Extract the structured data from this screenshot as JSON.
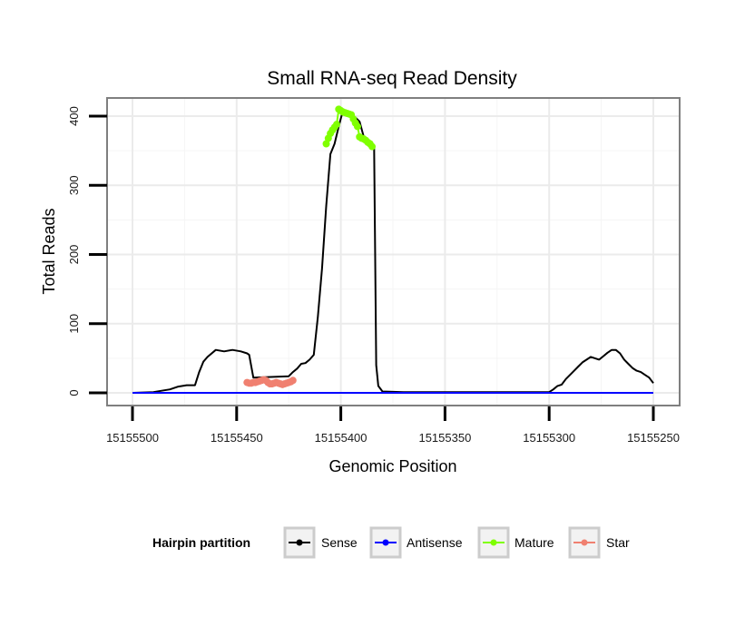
{
  "chart_data": {
    "type": "line",
    "title": "Small RNA-seq Read Density",
    "xlabel": "Genomic Position",
    "ylabel": "Total Reads",
    "xlim": [
      15155500,
      15155250
    ],
    "ylim": [
      0,
      420
    ],
    "x_reversed": true,
    "x_ticks": [
      15155500,
      15155450,
      15155400,
      15155350,
      15155300,
      15155250
    ],
    "y_ticks": [
      0,
      100,
      200,
      300,
      400
    ],
    "x_tick_labels": [
      "15155500",
      "15155450",
      "15155400",
      "15155350",
      "15155300",
      "15155250"
    ],
    "y_tick_labels": [
      "0",
      "100",
      "200",
      "300",
      "400"
    ],
    "grid": true,
    "legend": {
      "title": "Hairpin partition",
      "placement": "bottom",
      "entries": [
        {
          "name": "Sense",
          "color": "#000000"
        },
        {
          "name": "Antisense",
          "color": "#0000ff"
        },
        {
          "name": "Mature",
          "color": "#7fff00"
        },
        {
          "name": "Star",
          "color": "#f08070"
        }
      ]
    },
    "series": [
      {
        "name": "Sense",
        "color": "#000000",
        "markers": false,
        "x": [
          15155500,
          15155490,
          15155486,
          15155482,
          15155478,
          15155474,
          15155470,
          15155468,
          15155466,
          15155464,
          15155460,
          15155456,
          15155452,
          15155448,
          15155445,
          15155444,
          15155442,
          15155425,
          15155423,
          15155421,
          15155419,
          15155417,
          15155415,
          15155413,
          15155411,
          15155409,
          15155407,
          15155405,
          15155403,
          15155401,
          15155399,
          15155397,
          15155395,
          15155393,
          15155391,
          15155389,
          15155387,
          15155386,
          15155385,
          15155384,
          15155383,
          15155382,
          15155380,
          15155370,
          15155360,
          15155350,
          15155340,
          15155325,
          15155315,
          15155300,
          15155298,
          15155296,
          15155294,
          15155292,
          15155290,
          15155288,
          15155286,
          15155284,
          15155282,
          15155280,
          15155278,
          15155276,
          15155274,
          15155272,
          15155270,
          15155268,
          15155266,
          15155264,
          15155262,
          15155260,
          15155258,
          15155256,
          15155254,
          15155252,
          15155250
        ],
        "y": [
          0,
          1,
          3,
          5,
          9,
          11,
          11,
          30,
          45,
          52,
          62,
          60,
          62,
          60,
          57,
          55,
          22,
          24,
          30,
          35,
          42,
          43,
          48,
          55,
          110,
          180,
          270,
          345,
          360,
          385,
          408,
          405,
          402,
          398,
          392,
          370,
          366,
          362,
          358,
          355,
          40,
          10,
          2,
          1,
          1,
          1,
          1,
          1,
          1,
          1,
          5,
          10,
          12,
          20,
          26,
          32,
          38,
          44,
          48,
          52,
          50,
          48,
          53,
          58,
          62,
          62,
          57,
          48,
          42,
          36,
          32,
          30,
          26,
          22,
          14
        ]
      },
      {
        "name": "Antisense",
        "color": "#0000ff",
        "markers": false,
        "x": [
          15155500,
          15155250
        ],
        "y": [
          0,
          0
        ]
      },
      {
        "name": "Mature",
        "color": "#7fff00",
        "markers": true,
        "x": [
          15155407,
          15155406,
          15155405,
          15155404,
          15155403,
          15155402,
          15155401,
          15155400,
          15155399,
          15155398,
          15155397,
          15155396,
          15155395,
          15155394,
          15155393,
          15155392,
          15155391,
          15155390,
          15155389,
          15155388,
          15155387,
          15155386,
          15155385
        ],
        "y": [
          360,
          368,
          375,
          380,
          384,
          388,
          410,
          408,
          406,
          405,
          404,
          403,
          402,
          396,
          390,
          385,
          370,
          368,
          367,
          365,
          362,
          360,
          356
        ]
      },
      {
        "name": "Star",
        "color": "#f08070",
        "markers": true,
        "x": [
          15155445,
          15155444,
          15155443,
          15155442,
          15155441,
          15155440,
          15155439,
          15155438,
          15155437,
          15155436,
          15155435,
          15155434,
          15155433,
          15155432,
          15155431,
          15155430,
          15155429,
          15155428,
          15155427,
          15155426,
          15155425,
          15155424,
          15155423
        ],
        "y": [
          15,
          14,
          14,
          15,
          15,
          16,
          17,
          18,
          19,
          18,
          15,
          13,
          13,
          14,
          15,
          14,
          13,
          12,
          13,
          14,
          15,
          16,
          18
        ]
      }
    ]
  }
}
